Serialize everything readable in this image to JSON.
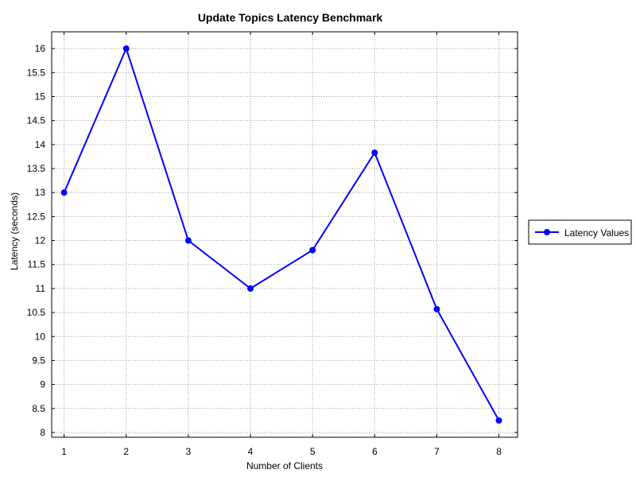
{
  "chart_data": {
    "type": "line",
    "title": "Update Topics Latency Benchmark",
    "xlabel": "Number of Clients",
    "ylabel": "Latency (seconds)",
    "x": [
      1,
      2,
      3,
      4,
      5,
      6,
      7,
      8
    ],
    "xlim": [
      0.8,
      8.3
    ],
    "ylim": [
      7.9,
      16.35
    ],
    "x_ticks": [
      1,
      2,
      3,
      4,
      5,
      6,
      7,
      8
    ],
    "y_ticks": [
      8,
      8.5,
      9,
      9.5,
      10,
      10.5,
      11,
      11.5,
      12,
      12.5,
      13,
      13.5,
      14,
      14.5,
      15,
      15.5,
      16
    ],
    "grid": true,
    "legend_position": "right",
    "series": [
      {
        "name": "Latency Values",
        "color": "#0000ff",
        "values": [
          13.0,
          16.0,
          12.0,
          11.0,
          11.8,
          13.83,
          10.57,
          8.25
        ]
      }
    ]
  }
}
